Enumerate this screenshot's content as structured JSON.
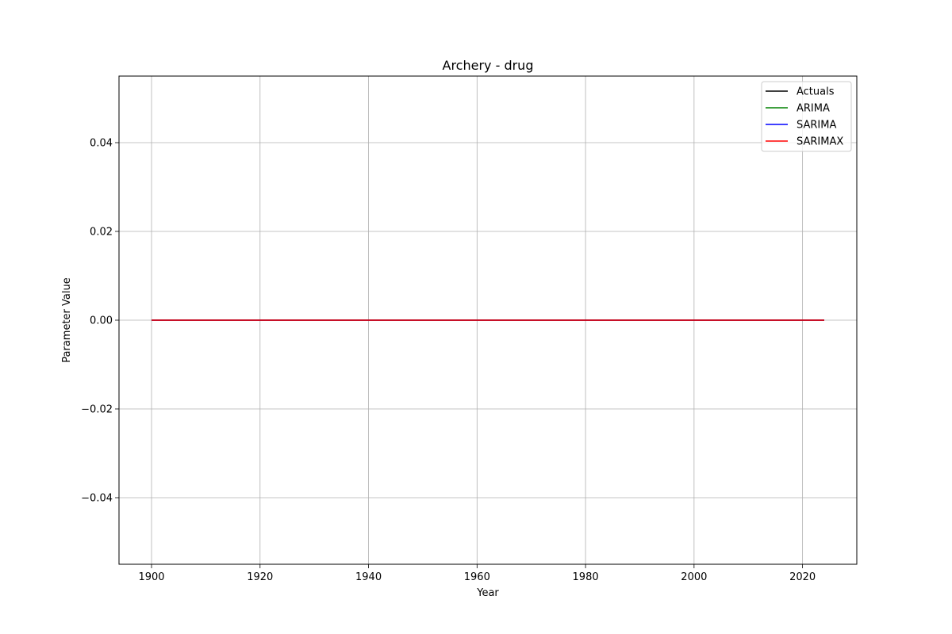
{
  "chart_data": {
    "type": "line",
    "title": "Archery - drug",
    "xlabel": "Year",
    "ylabel": "Parameter Value",
    "xlim": [
      1894,
      2030
    ],
    "ylim": [
      -0.055,
      0.055
    ],
    "xticks": [
      1900,
      1920,
      1940,
      1960,
      1980,
      2000,
      2020
    ],
    "yticks": [
      -0.04,
      -0.02,
      0.0,
      0.02,
      0.04
    ],
    "ytick_labels": [
      "−0.04",
      "−0.02",
      "0.00",
      "0.02",
      "0.04"
    ],
    "grid": true,
    "legend_position": "top-right",
    "x": [
      1900,
      2024
    ],
    "series": [
      {
        "name": "Actuals",
        "color": "#000000",
        "values": [
          0,
          0
        ]
      },
      {
        "name": "ARIMA",
        "color": "#008000",
        "values": [
          0,
          0
        ]
      },
      {
        "name": "SARIMA",
        "color": "#0000ff",
        "values": [
          0,
          0
        ]
      },
      {
        "name": "SARIMAX",
        "color": "#ff0000",
        "values": [
          0,
          0
        ]
      }
    ]
  }
}
